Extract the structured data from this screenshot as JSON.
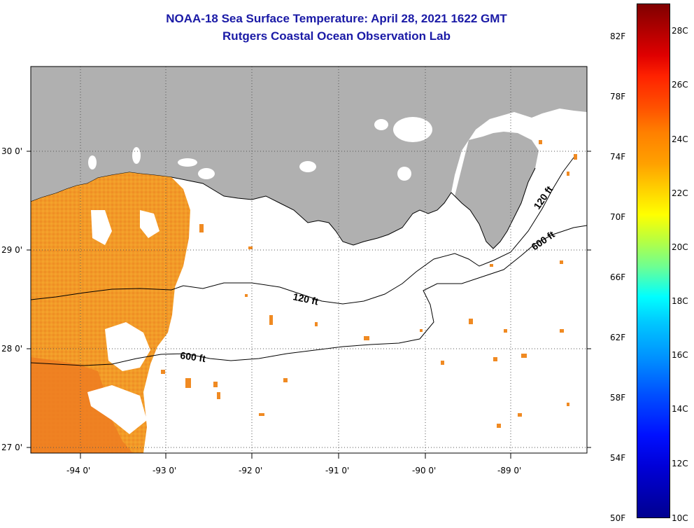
{
  "title_line1": "NOAA-18 Sea Surface Temperature:  April 28, 2021 1622 GMT",
  "title_line2": "Rutgers Coastal Ocean Observation Lab",
  "lat_labels": [
    "30 0'",
    "29 0'",
    "28 0'",
    "27 0'"
  ],
  "lon_labels": [
    "-94 0'",
    "-93 0'",
    "-92 0'",
    "-91 0'",
    "-90 0'",
    "-89 0'"
  ],
  "contour_labels": {
    "shallow": "120 ft",
    "deep": "600 ft"
  },
  "colorbar": {
    "fahrenheit": [
      "82F",
      "78F",
      "74F",
      "70F",
      "66F",
      "62F",
      "58F",
      "54F",
      "50F"
    ],
    "celsius": [
      "28C",
      "26C",
      "24C",
      "22C",
      "20C",
      "18C",
      "16C",
      "14C",
      "12C",
      "10C"
    ]
  },
  "colors": {
    "land": "#b0b0b0",
    "title": "#1a1aa6",
    "sst_warm": "#f08020",
    "sst_mid": "#f39a25"
  }
}
